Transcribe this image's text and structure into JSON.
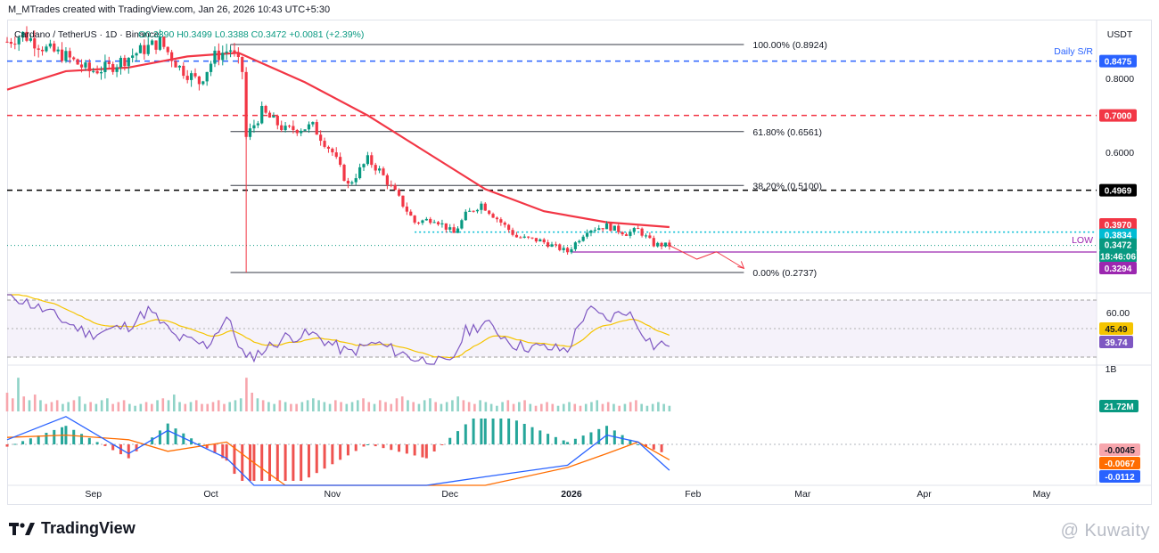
{
  "header": {
    "byline": "M_MTrades created with TradingView.com, Jan 26, 2026 10:43 UTC+5:30"
  },
  "legend": {
    "symbol": "Cardano / TetherUS · 1D · Binance",
    "ohlc_text": "O0.3390 H0.3499 L0.3388 C0.3472 +0.0081 (+2.39%)"
  },
  "price_axis": {
    "currency": "USDT",
    "ticks": [
      "0.8000",
      "0.6000"
    ],
    "price_tags": [
      {
        "text": "0.8475",
        "value": 0.8475,
        "color": "#2962ff"
      },
      {
        "text": "0.7000",
        "value": 0.7,
        "color": "#f23645"
      },
      {
        "text": "0.4969",
        "value": 0.4969,
        "color": "#000000"
      },
      {
        "text": "0.3970",
        "value": 0.397,
        "color": "#f23645"
      },
      {
        "text": "0.3834",
        "value": 0.3834,
        "color": "#00bcd4"
      },
      {
        "text": "0.3472",
        "value": 0.3472,
        "color": "#089981"
      },
      {
        "text": "18:46:06",
        "value": 0.34,
        "color": "#089981"
      },
      {
        "text": "0.3294",
        "value": 0.3294,
        "color": "#9c27b0"
      }
    ]
  },
  "annotations": {
    "daily_sr": "Daily S/R",
    "low": "LOW"
  },
  "fib_levels": [
    {
      "text": "100.00% (0.8924)",
      "value": 0.8924
    },
    {
      "text": "61.80% (0.6561)",
      "value": 0.6561
    },
    {
      "text": "38.20% (0.5100)",
      "value": 0.51
    },
    {
      "text": "0.00% (0.2737)",
      "value": 0.2737
    }
  ],
  "rsi_axis": {
    "ticks": [
      "60.00"
    ],
    "tags": [
      {
        "text": "45.49",
        "value": 45.49,
        "color": "#f5c400"
      },
      {
        "text": "39.74",
        "value": 39.74,
        "color": "#7e57c2"
      }
    ]
  },
  "volume_axis": {
    "ticks": [
      "1B"
    ],
    "tag": {
      "text": "21.72M",
      "color": "#089981"
    }
  },
  "macd_axis": {
    "tags": [
      {
        "text": "-0.0045",
        "color": "#f7a6ad"
      },
      {
        "text": "-0.0067",
        "color": "#ff6d00"
      },
      {
        "text": "-0.0112",
        "color": "#2962ff"
      }
    ]
  },
  "time_axis": {
    "labels": [
      "Sep",
      "Oct",
      "Nov",
      "Dec",
      "2026",
      "Feb",
      "Mar",
      "Apr",
      "May"
    ]
  },
  "footer": {
    "brand": "TradingView",
    "watermark": "@ Kuwaity"
  },
  "chart_data": {
    "type": "candlestick",
    "title": "Cardano / TetherUS · 1D · Binance",
    "y_range": [
      0.24,
      0.96
    ],
    "last_close": 0.3472,
    "ohlc": {
      "open": 0.339,
      "high": 0.3499,
      "low": 0.3388,
      "close": 0.3472,
      "change": 0.0081,
      "change_pct": 2.39
    },
    "close_path": [
      [
        "2025-08-10",
        0.9
      ],
      [
        "2025-08-14",
        0.92
      ],
      [
        "2025-08-20",
        0.88
      ],
      [
        "2025-08-25",
        0.86
      ],
      [
        "2025-08-31",
        0.82
      ],
      [
        "2025-09-05",
        0.83
      ],
      [
        "2025-09-12",
        0.87
      ],
      [
        "2025-09-18",
        0.9
      ],
      [
        "2025-09-23",
        0.83
      ],
      [
        "2025-09-28",
        0.79
      ],
      [
        "2025-10-02",
        0.86
      ],
      [
        "2025-10-06",
        0.88
      ],
      [
        "2025-10-09",
        0.82
      ],
      [
        "2025-10-10",
        0.64
      ],
      [
        "2025-10-14",
        0.71
      ],
      [
        "2025-10-20",
        0.66
      ],
      [
        "2025-10-27",
        0.67
      ],
      [
        "2025-11-01",
        0.6
      ],
      [
        "2025-11-05",
        0.51
      ],
      [
        "2025-11-10",
        0.58
      ],
      [
        "2025-11-13",
        0.55
      ],
      [
        "2025-11-17",
        0.49
      ],
      [
        "2025-11-22",
        0.41
      ],
      [
        "2025-11-27",
        0.42
      ],
      [
        "2025-12-02",
        0.38
      ],
      [
        "2025-12-05",
        0.43
      ],
      [
        "2025-12-09",
        0.46
      ],
      [
        "2025-12-13",
        0.42
      ],
      [
        "2025-12-18",
        0.37
      ],
      [
        "2025-12-24",
        0.36
      ],
      [
        "2025-12-31",
        0.33
      ],
      [
        "2026-01-05",
        0.39
      ],
      [
        "2026-01-10",
        0.4
      ],
      [
        "2026-01-15",
        0.38
      ],
      [
        "2026-01-18",
        0.39
      ],
      [
        "2026-01-22",
        0.35
      ],
      [
        "2026-01-26",
        0.3472
      ]
    ],
    "ma": [
      [
        "2025-08-10",
        0.77
      ],
      [
        "2025-08-25",
        0.82
      ],
      [
        "2025-09-10",
        0.83
      ],
      [
        "2025-09-25",
        0.86
      ],
      [
        "2025-10-08",
        0.87
      ],
      [
        "2025-10-25",
        0.79
      ],
      [
        "2025-11-10",
        0.7
      ],
      [
        "2025-11-25",
        0.6
      ],
      [
        "2025-12-10",
        0.5
      ],
      [
        "2025-12-25",
        0.44
      ],
      [
        "2026-01-10",
        0.41
      ],
      [
        "2026-01-26",
        0.397
      ]
    ],
    "horizontal_levels": [
      {
        "label": "Daily S/R",
        "value": 0.8475,
        "color": "#2962ff",
        "style": "dashed"
      },
      {
        "value": 0.7,
        "color": "#f23645",
        "style": "dashed"
      },
      {
        "value": 0.4969,
        "color": "#000000",
        "style": "dashed"
      },
      {
        "value": 0.3834,
        "color": "#00bcd4",
        "style": "dotted"
      },
      {
        "label": "LOW",
        "value": 0.3294,
        "color": "#9c27b0",
        "style": "solid"
      }
    ],
    "rsi": {
      "range": [
        20,
        90
      ],
      "current": 39.74,
      "signal": 45.49,
      "path": [
        [
          "2025-08-10",
          75
        ],
        [
          "2025-08-20",
          62
        ],
        [
          "2025-08-31",
          46
        ],
        [
          "2025-09-10",
          52
        ],
        [
          "2025-09-15",
          63
        ],
        [
          "2025-09-22",
          44
        ],
        [
          "2025-09-30",
          38
        ],
        [
          "2025-10-05",
          58
        ],
        [
          "2025-10-10",
          28
        ],
        [
          "2025-10-20",
          44
        ],
        [
          "2025-10-27",
          46
        ],
        [
          "2025-11-05",
          33
        ],
        [
          "2025-11-12",
          40
        ],
        [
          "2025-11-22",
          29
        ],
        [
          "2025-12-01",
          25
        ],
        [
          "2025-12-05",
          48
        ],
        [
          "2025-12-10",
          54
        ],
        [
          "2025-12-18",
          38
        ],
        [
          "2025-12-31",
          35
        ],
        [
          "2026-01-05",
          64
        ],
        [
          "2026-01-10",
          56
        ],
        [
          "2026-01-15",
          63
        ],
        [
          "2026-01-22",
          38
        ],
        [
          "2026-01-26",
          39.74
        ]
      ]
    },
    "volume": {
      "current": "21.72M",
      "relative_bars": [
        0.5,
        0.35,
        0.9,
        0.4,
        0.3,
        0.45,
        0.3,
        0.2,
        0.25,
        0.3,
        0.2,
        0.25,
        0.3,
        0.4,
        0.2,
        0.25,
        0.2,
        0.3,
        0.35,
        0.2,
        0.25,
        0.3,
        0.2,
        0.15,
        0.2,
        0.25,
        0.2,
        0.3,
        0.35,
        0.3,
        0.45,
        0.25,
        0.2,
        0.25,
        0.3,
        0.2,
        0.2,
        0.25,
        0.3,
        0.2,
        0.25,
        0.3,
        0.35,
        0.9,
        0.5,
        0.35,
        0.3,
        0.25,
        0.2,
        0.3,
        0.25,
        0.2,
        0.2,
        0.25,
        0.3,
        0.35,
        0.3,
        0.25,
        0.2,
        0.3,
        0.25,
        0.2,
        0.25,
        0.3,
        0.35,
        0.25,
        0.2,
        0.3,
        0.25,
        0.2,
        0.35,
        0.4,
        0.3,
        0.25,
        0.2,
        0.3,
        0.35,
        0.25,
        0.2,
        0.25,
        0.3,
        0.4,
        0.3,
        0.25,
        0.2,
        0.3,
        0.25,
        0.2,
        0.15,
        0.25,
        0.3,
        0.2,
        0.25,
        0.3,
        0.2,
        0.15,
        0.2,
        0.25,
        0.2,
        0.15,
        0.2,
        0.25,
        0.2,
        0.15,
        0.2,
        0.25,
        0.3,
        0.2,
        0.25,
        0.2,
        0.15,
        0.2,
        0.25,
        0.3,
        0.2,
        0.15,
        0.2,
        0.25,
        0.2,
        0.15
      ]
    },
    "macd": {
      "histogram": -0.0045,
      "signal": -0.0067,
      "macd": -0.0112
    },
    "projection": [
      [
        "2026-01-26",
        0.3472
      ],
      [
        "2026-02-02",
        0.31
      ],
      [
        "2026-02-07",
        0.33
      ],
      [
        "2026-02-14",
        0.285
      ]
    ]
  }
}
